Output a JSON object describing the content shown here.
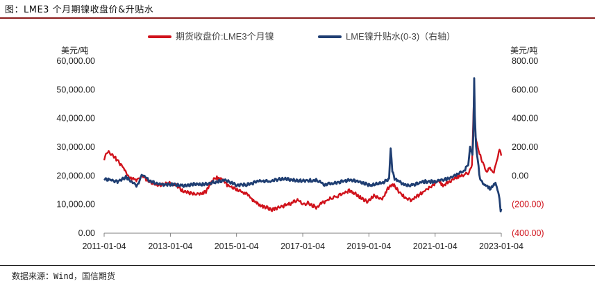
{
  "header": {
    "title": "图：LME3 个月期镍收盘价&升贴水"
  },
  "footer": {
    "source": "数据来源：Wind，国信期货"
  },
  "chart_data": {
    "type": "line",
    "legend_position": "top",
    "grid": false,
    "x_ticks": [
      "2011-01-04",
      "2013-01-04",
      "2015-01-04",
      "2017-01-04",
      "2019-01-04",
      "2021-01-04",
      "2023-01-04"
    ],
    "xlim": [
      "2011-01-04",
      "2023-01-04"
    ],
    "y_left": {
      "unit_label": "美元/吨",
      "lim": [
        0,
        60000
      ],
      "ticks": [
        0,
        10000,
        20000,
        30000,
        40000,
        50000,
        60000
      ],
      "tick_labels": [
        "0.00",
        "10,000.00",
        "20,000.00",
        "30,000.00",
        "40,000.00",
        "50,000.00",
        "60,000.00"
      ]
    },
    "y_right": {
      "unit_label": "美元/吨",
      "lim": [
        -400,
        800
      ],
      "ticks": [
        -400,
        -200,
        0,
        200,
        400,
        600,
        800
      ],
      "tick_labels": [
        "(400.00)",
        "(200.00)",
        "0.00",
        "200.00",
        "400.00",
        "600.00",
        "800.00"
      ]
    },
    "series": [
      {
        "name": "期货收盘价:LME3个月镍",
        "axis": "left",
        "color": "#d0121b",
        "x": [
          "2011-01-04",
          "2011-02-15",
          "2011-05-01",
          "2011-08-01",
          "2011-10-01",
          "2012-01-04",
          "2012-03-01",
          "2012-06-01",
          "2012-09-01",
          "2012-12-01",
          "2013-03-01",
          "2013-06-01",
          "2013-09-01",
          "2013-12-01",
          "2014-02-01",
          "2014-05-15",
          "2014-08-01",
          "2014-10-01",
          "2014-12-15",
          "2015-03-01",
          "2015-05-01",
          "2015-07-01",
          "2015-09-01",
          "2015-11-01",
          "2016-02-01",
          "2016-04-01",
          "2016-07-01",
          "2016-09-01",
          "2016-11-15",
          "2017-01-04",
          "2017-03-01",
          "2017-06-01",
          "2017-09-01",
          "2017-11-01",
          "2018-01-04",
          "2018-03-01",
          "2018-06-01",
          "2018-08-01",
          "2018-10-01",
          "2018-12-15",
          "2019-03-01",
          "2019-06-01",
          "2019-08-01",
          "2019-10-01",
          "2019-12-15",
          "2020-03-01",
          "2020-04-01",
          "2020-06-01",
          "2020-09-01",
          "2020-12-01",
          "2021-02-15",
          "2021-04-01",
          "2021-06-01",
          "2021-09-01",
          "2021-11-01",
          "2022-01-04",
          "2022-02-15",
          "2022-03-08",
          "2022-03-25",
          "2022-05-01",
          "2022-06-15",
          "2022-07-15",
          "2022-09-01",
          "2022-10-15",
          "2022-11-15",
          "2022-12-15",
          "2023-01-04"
        ],
        "y": [
          26000,
          28500,
          26500,
          23000,
          19500,
          18500,
          20000,
          17500,
          16500,
          17500,
          17000,
          14500,
          13800,
          13800,
          14500,
          19500,
          18800,
          16500,
          15800,
          14500,
          13500,
          11500,
          10200,
          9200,
          8300,
          8800,
          9800,
          10500,
          11500,
          10000,
          10500,
          9000,
          11000,
          12000,
          12500,
          13500,
          14800,
          14000,
          12500,
          11000,
          13000,
          12000,
          15500,
          17000,
          14000,
          12000,
          11500,
          12500,
          14500,
          16500,
          18500,
          16500,
          17800,
          19500,
          20000,
          21000,
          23500,
          48000,
          34000,
          28500,
          24500,
          21500,
          22500,
          21000,
          25500,
          29500,
          27000
        ]
      },
      {
        "name": "LME镍升贴水(0-3)（右轴）",
        "axis": "right",
        "color": "#1f3e72",
        "x": [
          "2011-01-04",
          "2011-06-01",
          "2011-09-01",
          "2012-01-04",
          "2012-03-01",
          "2012-06-01",
          "2012-09-01",
          "2013-01-04",
          "2013-06-01",
          "2013-09-01",
          "2014-01-04",
          "2014-06-01",
          "2014-09-01",
          "2015-01-04",
          "2015-06-01",
          "2015-09-01",
          "2016-01-04",
          "2016-06-01",
          "2016-09-01",
          "2017-01-04",
          "2017-06-01",
          "2017-09-01",
          "2018-01-04",
          "2018-06-01",
          "2018-09-01",
          "2019-01-04",
          "2019-06-01",
          "2019-08-15",
          "2019-09-01",
          "2019-09-20",
          "2019-10-15",
          "2019-12-15",
          "2020-03-01",
          "2020-06-01",
          "2020-09-01",
          "2021-01-04",
          "2021-06-01",
          "2021-09-01",
          "2021-11-15",
          "2022-01-04",
          "2022-01-25",
          "2022-02-20",
          "2022-03-01",
          "2022-03-08",
          "2022-03-11",
          "2022-03-18",
          "2022-04-01",
          "2022-05-15",
          "2022-07-01",
          "2022-09-01",
          "2022-11-01",
          "2022-12-01",
          "2022-12-15",
          "2022-12-28",
          "2023-01-04"
        ],
        "y": [
          -20,
          -40,
          -10,
          -70,
          10,
          -40,
          -60,
          -60,
          -70,
          -60,
          -60,
          -40,
          -30,
          -65,
          -60,
          -35,
          -40,
          -20,
          -30,
          -35,
          -30,
          -60,
          -50,
          -30,
          -35,
          -65,
          -50,
          -20,
          200,
          30,
          -20,
          -45,
          -70,
          -60,
          -40,
          -40,
          -20,
          10,
          30,
          80,
          200,
          140,
          280,
          550,
          690,
          420,
          200,
          -30,
          -60,
          -90,
          -50,
          -120,
          -150,
          -250,
          -230
        ]
      }
    ]
  }
}
